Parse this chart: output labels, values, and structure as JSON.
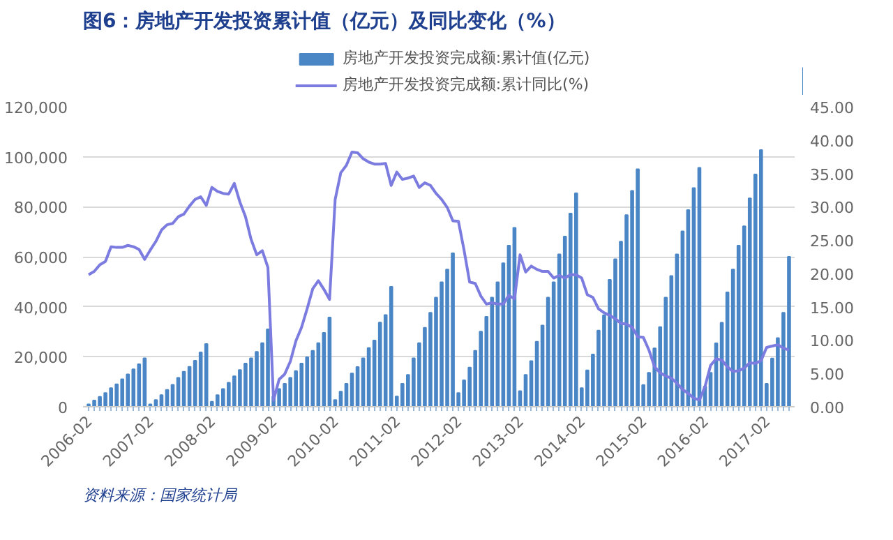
{
  "chart_data": {
    "type": "bar",
    "title": "图6：房地产开发投资累计值（亿元）及同比变化（%）",
    "annotations": [
      "资料来源：国家统计局"
    ],
    "categories": [
      "2006-02",
      null,
      null,
      null,
      null,
      null,
      null,
      null,
      null,
      null,
      null,
      "2007-02",
      null,
      null,
      null,
      null,
      null,
      null,
      null,
      null,
      null,
      null,
      "2008-02",
      null,
      null,
      null,
      null,
      null,
      null,
      null,
      null,
      null,
      null,
      "2009-02",
      null,
      null,
      null,
      null,
      null,
      null,
      null,
      null,
      null,
      null,
      "2010-02",
      null,
      null,
      null,
      null,
      null,
      null,
      null,
      null,
      null,
      null,
      "2011-02",
      null,
      null,
      null,
      null,
      null,
      null,
      null,
      null,
      null,
      null,
      "2012-02",
      null,
      null,
      null,
      null,
      null,
      null,
      null,
      null,
      null,
      null,
      "2013-02",
      null,
      null,
      null,
      null,
      null,
      null,
      null,
      null,
      null,
      null,
      "2014-02",
      null,
      null,
      null,
      null,
      null,
      null,
      null,
      null,
      null,
      null,
      "2015-02",
      null,
      null,
      null,
      null,
      null,
      null,
      null,
      null,
      null,
      null,
      "2016-02",
      null,
      null,
      null,
      null,
      null,
      null,
      null,
      null,
      null,
      null,
      "2017-02",
      null,
      null,
      null,
      null
    ],
    "series": [
      {
        "name": "房地产开发投资完成额:累计值(亿元)",
        "color": "#4a86c6",
        "values": [
          1000,
          2500,
          4000,
          5500,
          7500,
          9000,
          11000,
          13000,
          15000,
          17000,
          19400,
          1000,
          2700,
          4700,
          6800,
          8800,
          11600,
          14000,
          16000,
          18400,
          21800,
          25100,
          2000,
          4700,
          7100,
          9600,
          12200,
          14700,
          17300,
          19400,
          22000,
          25500,
          31000,
          4100,
          7100,
          9200,
          11600,
          14300,
          17300,
          19800,
          22400,
          25500,
          29600,
          35700,
          2700,
          6100,
          9200,
          13300,
          15900,
          19400,
          23500,
          26500,
          33700,
          36700,
          48000,
          4100,
          9200,
          12800,
          19400,
          25500,
          31600,
          37600,
          43700,
          49800,
          54900,
          61400,
          5500,
          10600,
          15700,
          22400,
          30100,
          36000,
          43700,
          49800,
          57400,
          64500,
          71600,
          6300,
          12800,
          18300,
          26000,
          32500,
          43700,
          49800,
          61000,
          68100,
          77300,
          85400,
          7500,
          14600,
          20900,
          30500,
          36600,
          50800,
          59000,
          66100,
          76700,
          86400,
          95000,
          8700,
          13600,
          23400,
          31900,
          43700,
          52300,
          61000,
          70200,
          78700,
          87500,
          95600,
          8100,
          13600,
          25400,
          33600,
          45800,
          54900,
          64500,
          72200,
          83400,
          92900,
          102700,
          9200,
          19300,
          27500,
          37600,
          60000
        ]
      },
      {
        "name": "房地产开发投资完成额:累计同比(%)",
        "type": "line",
        "axis": "y2",
        "color": "#7b7be0",
        "values": [
          19.8,
          20.3,
          21.3,
          21.8,
          24.0,
          23.9,
          23.9,
          24.2,
          24.0,
          23.6,
          22.1,
          23.5,
          24.8,
          26.5,
          27.3,
          27.5,
          28.5,
          28.9,
          30.1,
          31.1,
          31.5,
          30.2,
          32.9,
          32.3,
          32.0,
          31.9,
          33.5,
          30.7,
          28.5,
          25.1,
          22.8,
          23.4,
          20.9,
          1.0,
          4.1,
          4.9,
          6.8,
          9.9,
          11.9,
          14.7,
          17.7,
          18.9,
          17.6,
          16.1,
          31.1,
          35.1,
          36.2,
          38.2,
          38.1,
          37.2,
          36.7,
          36.4,
          36.4,
          36.5,
          33.2,
          35.2,
          34.1,
          34.3,
          34.6,
          32.9,
          33.6,
          33.2,
          32.0,
          31.1,
          29.9,
          27.9,
          27.8,
          23.5,
          18.7,
          18.5,
          16.6,
          15.4,
          15.6,
          15.4,
          15.4,
          16.7,
          16.2,
          22.8,
          20.2,
          21.1,
          20.6,
          20.3,
          20.3,
          19.3,
          19.7,
          19.3,
          19.8,
          19.8,
          19.3,
          16.8,
          16.4,
          14.7,
          14.1,
          13.7,
          13.2,
          12.5,
          12.4,
          11.9,
          10.5,
          10.4,
          8.5,
          6.0,
          5.1,
          4.6,
          4.3,
          3.5,
          2.6,
          2.0,
          1.3,
          1.0,
          3.0,
          6.2,
          7.2,
          7.0,
          6.0,
          5.3,
          5.4,
          5.8,
          6.6,
          6.5,
          6.9,
          8.9,
          9.1,
          9.3,
          8.8,
          8.5
        ]
      }
    ],
    "ylim": [
      0,
      120000
    ],
    "yticks": [
      {
        "value": 0,
        "label": "0"
      },
      {
        "value": 20000,
        "label": "20,000"
      },
      {
        "value": 40000,
        "label": "40,000"
      },
      {
        "value": 60000,
        "label": "60,000"
      },
      {
        "value": 80000,
        "label": "80,000"
      },
      {
        "value": 100000,
        "label": "100,000"
      },
      {
        "value": 120000,
        "label": "120,000"
      }
    ],
    "y2lim": [
      0,
      45
    ],
    "y2ticks": [
      {
        "value": 0,
        "label": "0.00"
      },
      {
        "value": 5,
        "label": "5.00"
      },
      {
        "value": 10,
        "label": "10.00"
      },
      {
        "value": 15,
        "label": "15.00"
      },
      {
        "value": 20,
        "label": "20.00"
      },
      {
        "value": 25,
        "label": "25.00"
      },
      {
        "value": 30,
        "label": "30.00"
      },
      {
        "value": 35,
        "label": "35.00"
      },
      {
        "value": 40,
        "label": "40.00"
      },
      {
        "value": 45,
        "label": "45.00"
      }
    ],
    "grid": "y",
    "legend": "top",
    "marker": "none",
    "line_style": "solid"
  }
}
